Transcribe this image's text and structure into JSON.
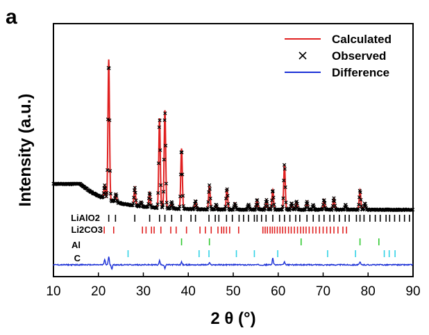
{
  "panel_label": "a",
  "chart_data": {
    "type": "line",
    "xlabel": "2 θ (°)",
    "ylabel": "Intensity (a.u.)",
    "xlim": [
      10,
      90
    ],
    "x_ticks": [
      10,
      20,
      30,
      40,
      50,
      60,
      70,
      80,
      90
    ],
    "y_ticks_shown": false,
    "grid": false,
    "legend_position": "top-right",
    "legend": [
      {
        "label": "Calculated",
        "marker": "line",
        "color": "#e02020"
      },
      {
        "label": "Observed",
        "marker": "×",
        "color": "#000000"
      },
      {
        "label": "Difference",
        "marker": "line",
        "color": "#1a2fd6"
      }
    ],
    "profile": {
      "background": {
        "start": 17.6,
        "x_end": 90,
        "end": 1.8,
        "decay": 6.5
      },
      "peaks": [
        {
          "x": 21.4,
          "h": 8
        },
        {
          "x": 22.3,
          "h": 86
        },
        {
          "x": 23.9,
          "h": 5
        },
        {
          "x": 28.1,
          "h": 11
        },
        {
          "x": 29.5,
          "h": 3
        },
        {
          "x": 31.4,
          "h": 9
        },
        {
          "x": 33.6,
          "h": 55
        },
        {
          "x": 34.8,
          "h": 60
        },
        {
          "x": 36.3,
          "h": 4
        },
        {
          "x": 38.5,
          "h": 37
        },
        {
          "x": 41.6,
          "h": 5
        },
        {
          "x": 44.7,
          "h": 15
        },
        {
          "x": 46.2,
          "h": 3
        },
        {
          "x": 48.6,
          "h": 13
        },
        {
          "x": 50.4,
          "h": 4
        },
        {
          "x": 53.4,
          "h": 3
        },
        {
          "x": 55.3,
          "h": 6
        },
        {
          "x": 57.4,
          "h": 6
        },
        {
          "x": 58.8,
          "h": 12
        },
        {
          "x": 61.4,
          "h": 28
        },
        {
          "x": 63.0,
          "h": 4
        },
        {
          "x": 64.1,
          "h": 5
        },
        {
          "x": 66.4,
          "h": 5
        },
        {
          "x": 67.8,
          "h": 3
        },
        {
          "x": 70.2,
          "h": 6
        },
        {
          "x": 72.4,
          "h": 7
        },
        {
          "x": 75.0,
          "h": 3
        },
        {
          "x": 78.2,
          "h": 12
        },
        {
          "x": 79.3,
          "h": 4
        }
      ],
      "difference_spikes": [
        {
          "x": 21.4,
          "h": 8
        },
        {
          "x": 22.3,
          "h": 12
        },
        {
          "x": 23.0,
          "h": -6
        },
        {
          "x": 33.6,
          "h": 6
        },
        {
          "x": 34.8,
          "h": -5
        },
        {
          "x": 38.5,
          "h": 4
        },
        {
          "x": 44.7,
          "h": 3
        },
        {
          "x": 58.8,
          "h": 10
        },
        {
          "x": 61.4,
          "h": 4
        },
        {
          "x": 78.2,
          "h": 4
        }
      ]
    },
    "reflection_markers": [
      {
        "phase": "LiAlO2",
        "color": "#000000",
        "positions": [
          22.3,
          23.8,
          28.1,
          31.4,
          33.6,
          34.8,
          36.3,
          38.4,
          40.6,
          41.6,
          44.6,
          46.0,
          46.8,
          48.5,
          49.8,
          51.3,
          52.3,
          53.4,
          54.7,
          55.3,
          56.3,
          57.3,
          58.8,
          60.3,
          61.4,
          62.6,
          63.9,
          64.8,
          66.4,
          67.8,
          69.1,
          70.2,
          71.5,
          72.4,
          73.6,
          74.9,
          75.8,
          77.4,
          78.2,
          79.1,
          80.4,
          81.6,
          82.7,
          84.0,
          84.8,
          85.9,
          87.0,
          88.1,
          89.2
        ]
      },
      {
        "phase": "Li2CO3",
        "color": "#e02020",
        "positions": [
          21.3,
          23.4,
          29.8,
          30.6,
          31.8,
          32.4,
          33.9,
          36.1,
          37.3,
          39.6,
          42.6,
          43.8,
          45.1,
          46.6,
          47.4,
          47.9,
          48.5,
          49.2,
          51.2,
          56.6,
          57.1,
          57.6,
          58.2,
          58.7,
          59.2,
          59.8,
          60.4,
          61.0,
          61.6,
          62.3,
          62.9,
          63.6,
          64.3,
          65.0,
          65.6,
          66.2,
          66.9,
          67.7,
          68.4,
          69.2,
          70.0,
          70.8,
          71.6,
          72.4,
          73.3,
          74.4,
          75.2
        ]
      },
      {
        "phase": "Al",
        "color": "#2ec82e",
        "positions": [
          38.5,
          44.7,
          65.1,
          78.2,
          82.4
        ]
      },
      {
        "phase": "C",
        "color": "#30d2e6",
        "positions": [
          26.6,
          42.4,
          44.6,
          50.7,
          54.7,
          59.9,
          71.0,
          77.2,
          83.6,
          84.7,
          86.0
        ]
      }
    ]
  }
}
